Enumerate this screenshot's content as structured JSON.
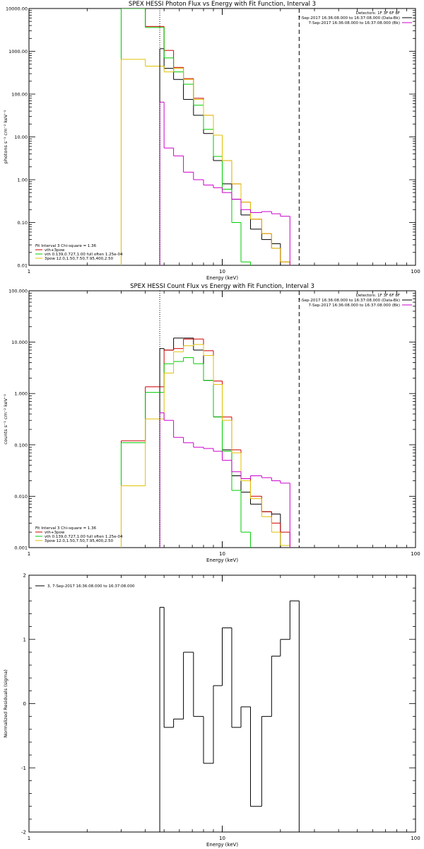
{
  "chart_data": [
    {
      "type": "line",
      "title": "SPEX HESSI Photon Flux vs Energy with Fit Function, Interval 3",
      "xlabel": "Energy (keV)",
      "ylabel": "photons s⁻¹ cm⁻² keV⁻¹",
      "xscale": "log",
      "yscale": "log",
      "xlim": [
        1,
        100
      ],
      "ylim": [
        0.01,
        10000
      ],
      "xtick_labels": [
        "1",
        "10",
        "100"
      ],
      "ytick_labels": [
        "0.01",
        "0.10",
        "1.00",
        "10.00",
        "100.00",
        "1000.00",
        "10000.00"
      ],
      "x_edges": [
        3,
        4,
        5,
        5.6,
        6.3,
        7.1,
        8,
        9,
        10,
        11.2,
        12.5,
        14,
        16,
        18,
        20,
        22.4,
        25
      ],
      "top_legend": [
        {
          "text": "Detectors: 1F 3F 6F 8F"
        },
        {
          "text": "7-Sep-2017 16:36:08.000 to 16:37:08.000 (Data-Bk)",
          "color": "#000000"
        },
        {
          "text": "7-Sep-2017 16:36:08.000 to 16:37:08.000 (Bk)",
          "color": "#cc00cc"
        }
      ],
      "bottom_legend": [
        {
          "text": "Fit Interval 3   Chi-square = 1.36"
        },
        {
          "text": "vth+3pow",
          "color": "#d00000"
        },
        {
          "text": "vth 0.139,0.727,1.00  full often 1.25e-04",
          "color": "#00cc00"
        },
        {
          "text": "3pow 12.0,1.50,7.50,7.95,400,2.50",
          "color": "#e0c000"
        }
      ],
      "vlines": [
        {
          "x": 4.75,
          "style": "dotted"
        },
        {
          "x": 25,
          "style": "dashed"
        }
      ],
      "series": [
        {
          "name": "Data-Bk",
          "color": "#000000",
          "x_start": 4.75,
          "values": [
            1150,
            400,
            220,
            75,
            32,
            12,
            2.8,
            0.8,
            0.35,
            0.15,
            0.07,
            0.04,
            0.032
          ]
        },
        {
          "name": "vth+3pow",
          "color": "#d00000",
          "x_start": 3,
          "values": [
            10000,
            3800,
            1050,
            420,
            230,
            80,
            32,
            11,
            2.8,
            0.8,
            0.3,
            0.12,
            0.055,
            0.025,
            0.012
          ]
        },
        {
          "name": "vth",
          "color": "#00cc00",
          "x_start": 3,
          "values": [
            10000,
            3600,
            700,
            330,
            170,
            55,
            15,
            3.5,
            0.6,
            0.1,
            0.012
          ]
        },
        {
          "name": "3pow",
          "color": "#e0c000",
          "x_start": 3,
          "values": [
            650,
            450,
            330,
            400,
            220,
            75,
            32,
            11,
            2.8,
            0.8,
            0.3,
            0.12,
            0.055,
            0.025,
            0.012
          ]
        },
        {
          "name": "Bk",
          "color": "#cc00cc",
          "x_start": 4.75,
          "values": [
            65,
            5.5,
            3.6,
            1.5,
            1.0,
            0.75,
            0.65,
            0.5,
            0.35,
            0.2,
            0.17,
            0.18,
            0.16,
            0.14
          ]
        }
      ]
    },
    {
      "type": "line",
      "title": "SPEX HESSI Count Flux vs Energy with Fit Function, Interval 3",
      "xlabel": "Energy (keV)",
      "ylabel": "counts s⁻¹ cm⁻² keV⁻¹",
      "xscale": "log",
      "yscale": "log",
      "xlim": [
        1,
        100
      ],
      "ylim": [
        0.001,
        100
      ],
      "xtick_labels": [
        "1",
        "10",
        "100"
      ],
      "ytick_labels": [
        "0.001",
        "0.010",
        "0.100",
        "1.000",
        "10.000",
        "100.000"
      ],
      "top_legend": [
        {
          "text": "Detectors: 1F 3F 6F 8F"
        },
        {
          "text": "7-Sep-2017 16:36:08.000 to 16:37:08.000 (Data-Bk)",
          "color": "#000000"
        },
        {
          "text": "7-Sep-2017 16:36:08.000 to 16:37:08.000 (Bk)",
          "color": "#cc00cc"
        }
      ],
      "bottom_legend": [
        {
          "text": "Fit Interval 3   Chi-square = 1.36"
        },
        {
          "text": "vth+3pow",
          "color": "#d00000"
        },
        {
          "text": "vth 0.139,0.727,1.00  full often 1.25e-04",
          "color": "#00cc00"
        },
        {
          "text": "3pow 12.0,1.50,7.50,7.95,400,2.50",
          "color": "#e0c000"
        }
      ],
      "vlines": [
        {
          "x": 4.75,
          "style": "dotted"
        },
        {
          "x": 25,
          "style": "dashed"
        }
      ],
      "series": [
        {
          "name": "Data-Bk",
          "color": "#000000",
          "x_start": 4.75,
          "values": [
            7.5,
            7,
            12,
            12,
            7,
            1.8,
            0.35,
            0.08,
            0.025,
            0.012,
            0.007,
            0.005,
            0.0045
          ]
        },
        {
          "name": "vth+3pow",
          "color": "#d00000",
          "x_start": 3,
          "values": [
            0.12,
            1.35,
            7.0,
            7.5,
            11.5,
            11.5,
            6.8,
            1.75,
            0.35,
            0.08,
            0.022,
            0.01,
            0.005,
            0.003,
            0.002
          ]
        },
        {
          "name": "vth",
          "color": "#00cc00",
          "x_start": 3,
          "values": [
            0.11,
            1.05,
            3.8,
            4.2,
            5.0,
            3.8,
            1.8,
            0.35,
            0.075,
            0.013,
            0.002
          ]
        },
        {
          "name": "3pow",
          "color": "#e0c000",
          "x_start": 3,
          "values": [
            0.016,
            0.32,
            2.5,
            6.5,
            8.5,
            9,
            5.5,
            1.5,
            0.3,
            0.07,
            0.02,
            0.009,
            0.004,
            0.002,
            0.0011
          ]
        },
        {
          "name": "Bk",
          "color": "#cc00cc",
          "x_start": 4.75,
          "values": [
            0.42,
            0.3,
            0.14,
            0.11,
            0.09,
            0.085,
            0.075,
            0.05,
            0.03,
            0.022,
            0.025,
            0.023,
            0.02,
            0.018
          ]
        }
      ]
    },
    {
      "type": "line",
      "title": "",
      "xlabel": "Energy (keV)",
      "ylabel": "Normalized Residuals (sigma)",
      "xscale": "log",
      "yscale": "linear",
      "xlim": [
        1,
        100
      ],
      "ylim": [
        -2,
        2
      ],
      "xtick_labels": [
        "1",
        "10",
        "100"
      ],
      "ytick_labels": [
        "-2",
        "-1",
        "0",
        "1",
        "2"
      ],
      "legend": [
        {
          "text": "3,  7-Sep-2017 16:36:08.000 to 16:37:08.000",
          "color": "#000000"
        }
      ],
      "series": [
        {
          "name": "3,  7-Sep-2017 16:36:08.000 to 16:37:08.000",
          "color": "#000000",
          "x_start": 4.75,
          "values": [
            1.5,
            -0.37,
            -0.24,
            0.8,
            -0.2,
            -0.93,
            0.28,
            1.18,
            -0.37,
            -0.05,
            -1.6,
            -0.2,
            0.74,
            1.0,
            1.6
          ]
        }
      ]
    }
  ]
}
